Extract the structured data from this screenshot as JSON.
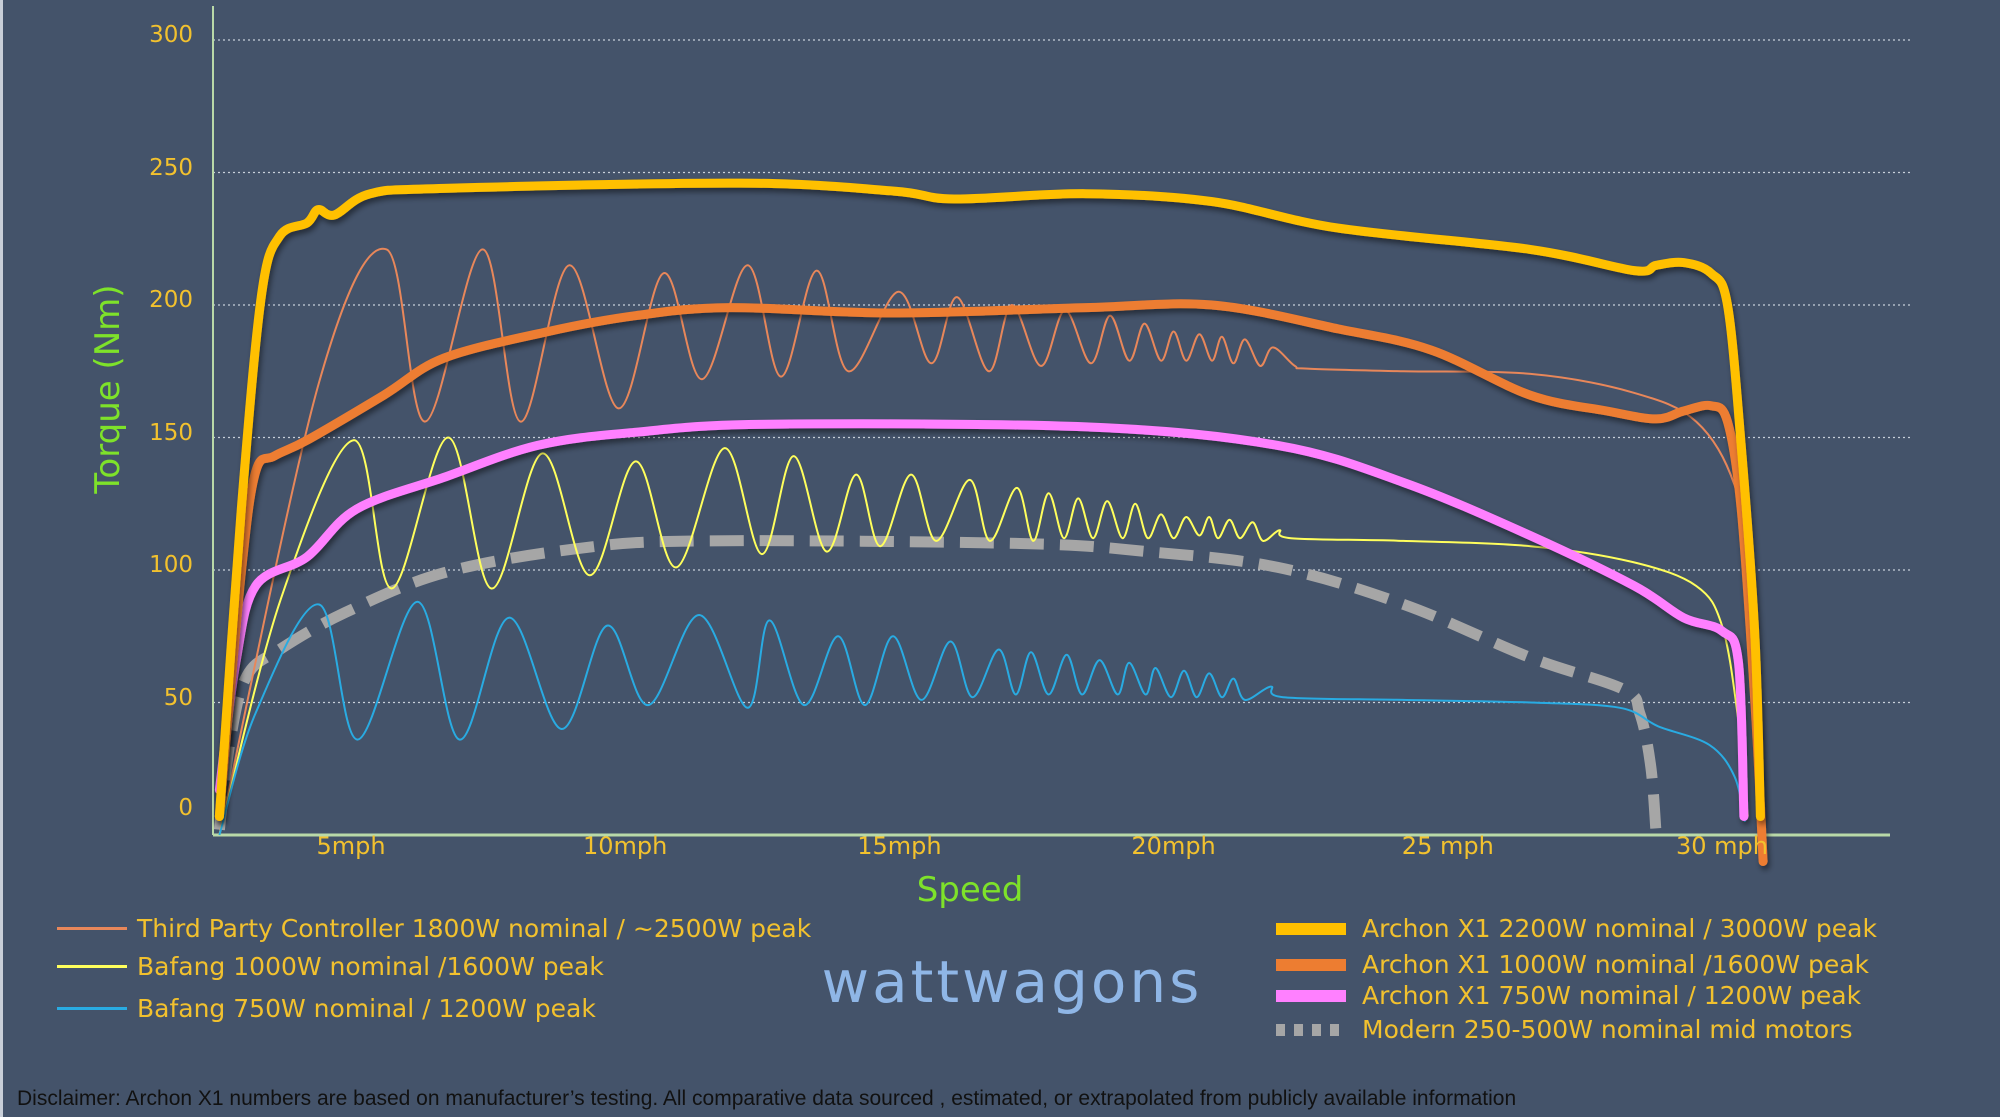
{
  "chart_data": {
    "type": "line",
    "title": "",
    "xlabel": "Speed",
    "ylabel": "Torque  (Nm)",
    "xlim": [
      2.5,
      33
    ],
    "ylim": [
      0,
      300
    ],
    "x_ticks": [
      {
        "value": 5,
        "label": "5mph"
      },
      {
        "value": 10,
        "label": "10mph"
      },
      {
        "value": 15,
        "label": "15mph"
      },
      {
        "value": 20,
        "label": "20mph"
      },
      {
        "value": 25,
        "label": "25 mph"
      },
      {
        "value": 30,
        "label": "30 mph"
      }
    ],
    "y_ticks": [
      0,
      50,
      100,
      150,
      200,
      250,
      300
    ],
    "grid": "horizontal dotted",
    "legend_placement": "bottom",
    "background": "#44536a",
    "series": [
      {
        "name": "Third Party Controller 1800W nominal / ~2500W peak",
        "color": "#e8875a",
        "style": "thin",
        "legend_group": "left",
        "points": [
          [
            2.6,
            0
          ],
          [
            4.42,
            171
          ],
          [
            5.65,
            221
          ],
          [
            6.35,
            156
          ],
          [
            7.4,
            221
          ],
          [
            8.09,
            156
          ],
          [
            8.98,
            215
          ],
          [
            9.88,
            161
          ],
          [
            10.7,
            212
          ],
          [
            11.4,
            172
          ],
          [
            12.23,
            215
          ],
          [
            12.84,
            173
          ],
          [
            13.49,
            213
          ],
          [
            14.07,
            175
          ],
          [
            14.98,
            205
          ],
          [
            15.58,
            178
          ],
          [
            16.05,
            203
          ],
          [
            16.63,
            175
          ],
          [
            17.05,
            200
          ],
          [
            17.58,
            177
          ],
          [
            18.02,
            198
          ],
          [
            18.49,
            178
          ],
          [
            18.84,
            196
          ],
          [
            19.19,
            179
          ],
          [
            19.47,
            193
          ],
          [
            19.77,
            179
          ],
          [
            20.0,
            190
          ],
          [
            20.23,
            179
          ],
          [
            20.47,
            189
          ],
          [
            20.7,
            179
          ],
          [
            20.88,
            188
          ],
          [
            21.09,
            178
          ],
          [
            21.3,
            187
          ],
          [
            21.58,
            177
          ],
          [
            21.81,
            184
          ],
          [
            22.21,
            177
          ],
          [
            22.44,
            176
          ],
          [
            24.19,
            175
          ],
          [
            26.51,
            174
          ],
          [
            28.37,
            167
          ],
          [
            29.53,
            156
          ],
          [
            30.23,
            132
          ],
          [
            30.58,
            94
          ]
        ]
      },
      {
        "name": "Bafang 1000W nominal /1600W peak",
        "color": "#ffff5c",
        "style": "thin",
        "legend_group": "left",
        "points": [
          [
            2.6,
            0
          ],
          [
            3.72,
            89
          ],
          [
            5.05,
            149
          ],
          [
            5.74,
            93
          ],
          [
            6.77,
            150
          ],
          [
            7.56,
            93
          ],
          [
            8.49,
            144
          ],
          [
            9.35,
            98
          ],
          [
            10.19,
            141
          ],
          [
            10.93,
            101
          ],
          [
            11.81,
            146
          ],
          [
            12.49,
            106
          ],
          [
            13.07,
            143
          ],
          [
            13.67,
            107
          ],
          [
            14.21,
            136
          ],
          [
            14.65,
            109
          ],
          [
            15.21,
            136
          ],
          [
            15.67,
            111
          ],
          [
            16.28,
            134
          ],
          [
            16.65,
            111
          ],
          [
            17.14,
            131
          ],
          [
            17.44,
            111
          ],
          [
            17.72,
            129
          ],
          [
            18.0,
            112
          ],
          [
            18.26,
            127
          ],
          [
            18.53,
            112
          ],
          [
            18.79,
            126
          ],
          [
            19.07,
            112
          ],
          [
            19.3,
            125
          ],
          [
            19.53,
            112
          ],
          [
            19.77,
            121
          ],
          [
            20.0,
            112
          ],
          [
            20.23,
            120
          ],
          [
            20.47,
            113
          ],
          [
            20.65,
            120
          ],
          [
            20.81,
            112
          ],
          [
            21.02,
            119
          ],
          [
            21.21,
            112
          ],
          [
            21.44,
            118
          ],
          [
            21.63,
            111
          ],
          [
            21.93,
            115
          ],
          [
            22.14,
            112
          ],
          [
            24.19,
            111
          ],
          [
            26.51,
            109
          ],
          [
            28.37,
            103
          ],
          [
            29.53,
            94
          ],
          [
            30.0,
            79
          ],
          [
            30.28,
            46
          ],
          [
            30.47,
            7
          ]
        ]
      },
      {
        "name": "Bafang 750W nominal / 1200W peak",
        "color": "#29abe2",
        "style": "thin",
        "legend_group": "left",
        "points": [
          [
            2.6,
            0
          ],
          [
            3.26,
            46
          ],
          [
            4.42,
            87
          ],
          [
            5.12,
            36
          ],
          [
            6.21,
            88
          ],
          [
            6.98,
            36
          ],
          [
            7.88,
            82
          ],
          [
            8.84,
            40
          ],
          [
            9.67,
            79
          ],
          [
            10.42,
            49
          ],
          [
            11.35,
            83
          ],
          [
            12.23,
            48
          ],
          [
            12.63,
            81
          ],
          [
            13.26,
            49
          ],
          [
            13.88,
            75
          ],
          [
            14.37,
            49
          ],
          [
            14.88,
            75
          ],
          [
            15.4,
            51
          ],
          [
            15.93,
            73
          ],
          [
            16.33,
            52
          ],
          [
            16.81,
            70
          ],
          [
            17.12,
            53
          ],
          [
            17.4,
            69
          ],
          [
            17.72,
            53
          ],
          [
            18.05,
            68
          ],
          [
            18.33,
            53
          ],
          [
            18.65,
            66
          ],
          [
            18.98,
            53
          ],
          [
            19.19,
            65
          ],
          [
            19.49,
            53
          ],
          [
            19.67,
            63
          ],
          [
            19.95,
            52
          ],
          [
            20.19,
            62
          ],
          [
            20.42,
            52
          ],
          [
            20.65,
            61
          ],
          [
            20.88,
            52
          ],
          [
            21.09,
            59
          ],
          [
            21.3,
            51
          ],
          [
            21.77,
            56
          ],
          [
            22.0,
            52
          ],
          [
            24.19,
            51
          ],
          [
            26.51,
            50
          ],
          [
            28.14,
            48
          ],
          [
            28.84,
            41
          ],
          [
            29.77,
            34
          ],
          [
            30.23,
            22
          ],
          [
            30.42,
            5
          ]
        ]
      },
      {
        "name": "Archon X1 2200W nominal / 3000W peak",
        "color": "#ffc000",
        "style": "thick",
        "legend_group": "right",
        "points": [
          [
            2.6,
            7
          ],
          [
            3.0,
            123
          ],
          [
            3.37,
            204
          ],
          [
            3.7,
            226
          ],
          [
            4.2,
            231
          ],
          [
            4.4,
            236
          ],
          [
            4.7,
            234
          ],
          [
            5.35,
            242
          ],
          [
            6.7,
            244
          ],
          [
            12.1,
            246
          ],
          [
            14.9,
            243
          ],
          [
            16.0,
            240
          ],
          [
            18.4,
            242
          ],
          [
            20.7,
            239
          ],
          [
            23.0,
            229
          ],
          [
            26.5,
            221
          ],
          [
            28.4,
            213
          ],
          [
            28.8,
            215
          ],
          [
            29.3,
            216
          ],
          [
            29.8,
            212
          ],
          [
            30.1,
            200
          ],
          [
            30.35,
            147
          ],
          [
            30.6,
            75
          ],
          [
            30.7,
            7
          ]
        ]
      },
      {
        "name": "Archon X1 1000W nominal /1600W peak",
        "color": "#ed7d31",
        "style": "thick",
        "legend_group": "right",
        "points": [
          [
            2.6,
            7
          ],
          [
            3.0,
            99
          ],
          [
            3.26,
            137
          ],
          [
            3.6,
            143
          ],
          [
            4.2,
            149
          ],
          [
            5.6,
            166
          ],
          [
            6.7,
            180
          ],
          [
            8.6,
            190
          ],
          [
            10.2,
            196
          ],
          [
            11.9,
            199
          ],
          [
            14.9,
            197
          ],
          [
            18.4,
            199
          ],
          [
            20.7,
            200
          ],
          [
            23.0,
            191
          ],
          [
            24.7,
            183
          ],
          [
            26.5,
            166
          ],
          [
            27.9,
            160
          ],
          [
            28.8,
            157
          ],
          [
            29.3,
            160
          ],
          [
            29.8,
            162
          ],
          [
            30.1,
            156
          ],
          [
            30.35,
            123
          ],
          [
            30.6,
            50
          ],
          [
            30.75,
            -10
          ]
        ]
      },
      {
        "name": "Archon X1 750W nominal / 1200W peak",
        "color": "#ff80ff",
        "style": "thick",
        "legend_group": "right",
        "points": [
          [
            2.6,
            17
          ],
          [
            2.9,
            65
          ],
          [
            3.26,
            94
          ],
          [
            4.2,
            105
          ],
          [
            5.1,
            123
          ],
          [
            6.7,
            135
          ],
          [
            8.4,
            147
          ],
          [
            10.2,
            152
          ],
          [
            12.6,
            155
          ],
          [
            18.4,
            154
          ],
          [
            21.9,
            147
          ],
          [
            24.2,
            133
          ],
          [
            26.5,
            113
          ],
          [
            28.4,
            94
          ],
          [
            29.3,
            82
          ],
          [
            30.0,
            77
          ],
          [
            30.3,
            65
          ],
          [
            30.4,
            7
          ]
        ]
      },
      {
        "name": "Modern 250-500W nominal mid motors",
        "color": "#a6a6a6",
        "style": "dashed",
        "legend_group": "right",
        "points": [
          [
            2.6,
            2
          ],
          [
            2.8,
            36
          ],
          [
            3.1,
            60
          ],
          [
            3.7,
            70
          ],
          [
            4.9,
            84
          ],
          [
            6.7,
            99
          ],
          [
            9.1,
            108
          ],
          [
            11.4,
            111
          ],
          [
            17.2,
            110
          ],
          [
            19.5,
            107
          ],
          [
            21.9,
            101
          ],
          [
            24.2,
            87
          ],
          [
            26.5,
            67
          ],
          [
            28.2,
            55
          ],
          [
            28.5,
            46
          ],
          [
            28.7,
            26
          ],
          [
            28.8,
            0
          ]
        ]
      }
    ]
  },
  "brand": "wattwagons",
  "disclaimer": "Disclaimer:  Archon X1 numbers are based on manufacturer’s testing. All comparative data sourced , estimated, or extrapolated from publicly available information"
}
